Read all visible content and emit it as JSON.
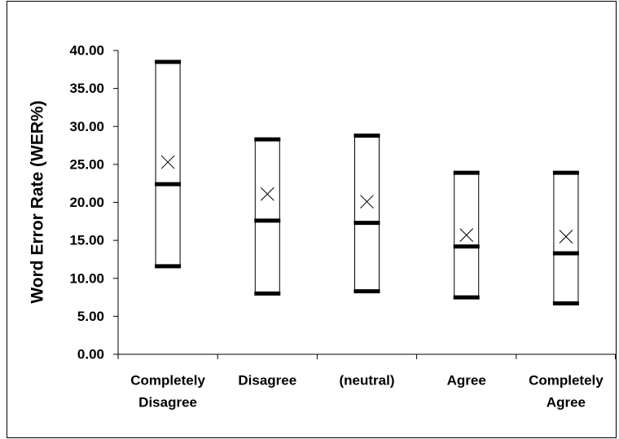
{
  "chart_data": {
    "type": "box",
    "title": "",
    "xlabel": "",
    "ylabel": "Word Error Rate  (WER%)",
    "ylim": [
      0,
      40
    ],
    "y_ticks": [
      0,
      5,
      10,
      15,
      20,
      25,
      30,
      35,
      40
    ],
    "y_tick_labels": [
      "0.00",
      "5.00",
      "10.00",
      "15.00",
      "20.00",
      "25.00",
      "30.00",
      "35.00",
      "40.00"
    ],
    "categories": [
      [
        "Completely",
        "Disagree"
      ],
      [
        "Disagree"
      ],
      [
        "(neutral)"
      ],
      [
        "Agree"
      ],
      [
        "Completely",
        "Agree"
      ]
    ],
    "series": [
      {
        "stat": "min",
        "values": [
          11.6,
          8.0,
          8.3,
          7.5,
          6.7
        ]
      },
      {
        "stat": "median",
        "values": [
          22.4,
          17.6,
          17.3,
          14.2,
          13.3
        ]
      },
      {
        "stat": "max",
        "values": [
          38.5,
          28.3,
          28.8,
          23.9,
          23.9
        ]
      },
      {
        "stat": "mean",
        "values": [
          25.3,
          21.1,
          20.1,
          15.7,
          15.5
        ]
      }
    ],
    "grid": false,
    "legend": "none",
    "colors": {
      "box_stroke": "#000000",
      "bar": "#000000",
      "mean_marker": "#000000",
      "frame": "#000000",
      "background": "#ffffff"
    }
  }
}
